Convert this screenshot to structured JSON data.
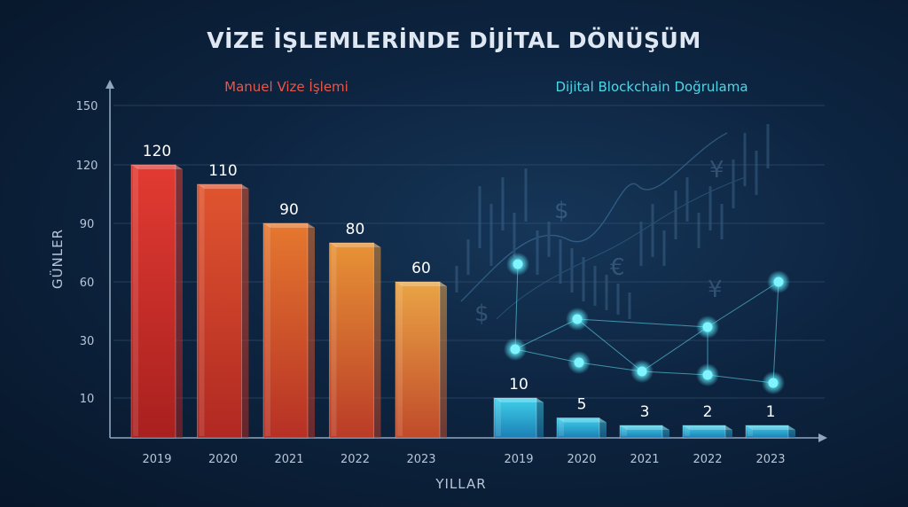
{
  "chart_data": {
    "type": "bar",
    "title": "VİZE İŞLEMLERİNDE DİJİTAL DÖNÜŞÜM",
    "xlabel": "YILLAR",
    "ylabel": "GÜNLER",
    "yticks": [
      "150",
      "120",
      "90",
      "60",
      "30",
      "10"
    ],
    "legend": [
      "Manuel Vize İşlemi",
      "Dijital Blockchain Doğrulama"
    ],
    "groups": [
      {
        "name": "Manuel Vize İşlemi",
        "categories": [
          "2019",
          "2020",
          "2021",
          "2022",
          "2023"
        ],
        "values": [
          120,
          110,
          90,
          80,
          60
        ],
        "labels": [
          "120",
          "110",
          "90",
          "80",
          "60"
        ]
      },
      {
        "name": "Dijital Blockchain Doğrulama",
        "categories": [
          "2019",
          "2020",
          "2021",
          "2022",
          "2023"
        ],
        "values": [
          10,
          5,
          3,
          2,
          1
        ],
        "labels": [
          "10",
          "5",
          "3",
          "2",
          "1"
        ]
      }
    ],
    "grid": true,
    "colors": {
      "manual_top": "#e7a24a",
      "manual_bottom": "#c42a2a",
      "digital": "#2fb8d8",
      "node": "#5ff0ff"
    }
  }
}
